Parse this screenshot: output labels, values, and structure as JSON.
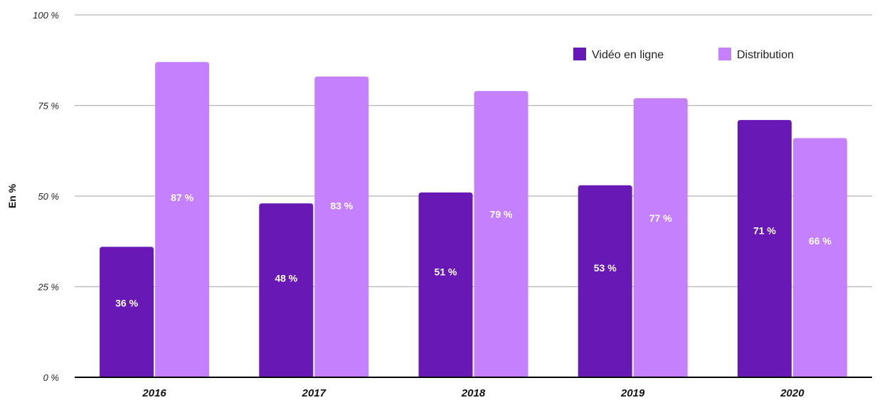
{
  "chart_data": {
    "type": "bar",
    "categories": [
      "2016",
      "2017",
      "2018",
      "2019",
      "2020"
    ],
    "series": [
      {
        "name": "Vidéo en ligne",
        "values": [
          36,
          48,
          51,
          53,
          71
        ],
        "color": "#6818b4",
        "labels": [
          "36 %",
          "48 %",
          "51 %",
          "53 %",
          "71 %"
        ]
      },
      {
        "name": "Distribution",
        "values": [
          87,
          83,
          79,
          77,
          66
        ],
        "color": "#c580fd",
        "labels": [
          "87 %",
          "83 %",
          "79 %",
          "77 %",
          "66 %"
        ]
      }
    ],
    "title": "",
    "xlabel": "",
    "ylabel": "En %",
    "ylim": [
      0,
      100
    ],
    "yticks": [
      0,
      25,
      50,
      75,
      100
    ],
    "ytick_labels": [
      "0 %",
      "25 %",
      "50 %",
      "75 %",
      "100 %"
    ],
    "grid": true,
    "legend": "top-right",
    "gridline_color": "#b3b3b3",
    "axis_color": "#000000"
  }
}
